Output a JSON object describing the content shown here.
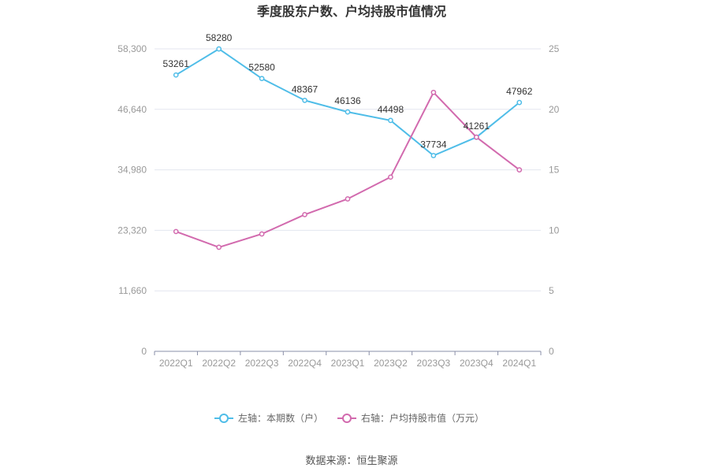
{
  "chart_data": {
    "type": "line",
    "title": "季度股东户数、户均持股市值情况",
    "categories": [
      "2022Q1",
      "2022Q2",
      "2022Q3",
      "2022Q4",
      "2023Q1",
      "2023Q2",
      "2023Q3",
      "2023Q4",
      "2024Q1"
    ],
    "left_axis": {
      "ylim": [
        0,
        58300
      ],
      "ticks": [
        0,
        11660,
        23320,
        34980,
        46640,
        58300
      ],
      "tick_labels": [
        "0",
        "11,660",
        "23,320",
        "34,980",
        "46,640",
        "58,300"
      ]
    },
    "right_axis": {
      "ylim": [
        0,
        25
      ],
      "ticks": [
        0,
        5,
        10,
        15,
        20,
        25
      ],
      "tick_labels": [
        "0",
        "5",
        "10",
        "15",
        "20",
        "25"
      ]
    },
    "series": [
      {
        "name": "左轴：本期数（户）",
        "axis": "left",
        "color": "#4fbde8",
        "values": [
          53261,
          58280,
          52580,
          48367,
          46136,
          44498,
          37734,
          41261,
          47962
        ],
        "labels": [
          "53261",
          "58280",
          "52580",
          "48367",
          "46136",
          "44498",
          "37734",
          "41261",
          "47962"
        ]
      },
      {
        "name": "右轴：户均持股市值（万元）",
        "axis": "right",
        "color": "#d26aae",
        "values": [
          9.9,
          8.6,
          9.7,
          11.3,
          12.6,
          14.4,
          21.4,
          17.7,
          15.0
        ]
      }
    ],
    "grid": true,
    "legend_position": "bottom"
  },
  "source": "数据来源：恒生聚源"
}
